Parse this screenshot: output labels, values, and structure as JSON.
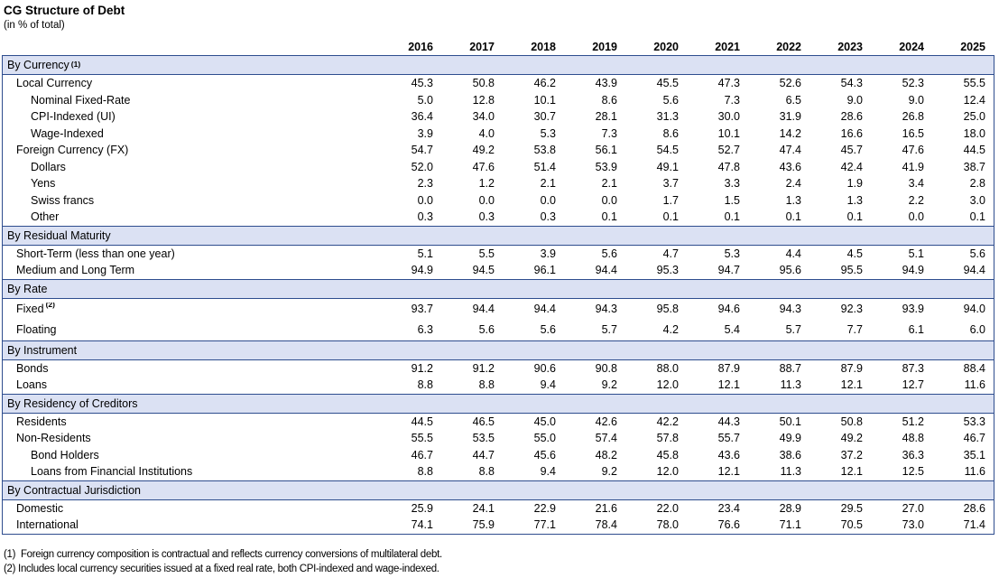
{
  "title": "CG Structure of Debt",
  "subtitle": "(in % of total)",
  "colors": {
    "band_fill": "#dbe1f3",
    "border": "#2e4d8e",
    "text": "#000000"
  },
  "years": [
    "2016",
    "2017",
    "2018",
    "2019",
    "2020",
    "2021",
    "2022",
    "2023",
    "2024",
    "2025"
  ],
  "sections": [
    {
      "header": "By Currency",
      "header_sup": "(1)",
      "rows": [
        {
          "label": "Local Currency",
          "indent": 1,
          "values": [
            "45.3",
            "50.8",
            "46.2",
            "43.9",
            "45.5",
            "47.3",
            "52.6",
            "54.3",
            "52.3",
            "55.5"
          ]
        },
        {
          "label": "Nominal Fixed-Rate",
          "indent": 2,
          "values": [
            "5.0",
            "12.8",
            "10.1",
            "8.6",
            "5.6",
            "7.3",
            "6.5",
            "9.0",
            "9.0",
            "12.4"
          ]
        },
        {
          "label": "CPI-Indexed (UI)",
          "indent": 2,
          "values": [
            "36.4",
            "34.0",
            "30.7",
            "28.1",
            "31.3",
            "30.0",
            "31.9",
            "28.6",
            "26.8",
            "25.0"
          ]
        },
        {
          "label": "Wage-Indexed",
          "indent": 2,
          "values": [
            "3.9",
            "4.0",
            "5.3",
            "7.3",
            "8.6",
            "10.1",
            "14.2",
            "16.6",
            "16.5",
            "18.0"
          ]
        },
        {
          "label": "Foreign Currency (FX)",
          "indent": 1,
          "values": [
            "54.7",
            "49.2",
            "53.8",
            "56.1",
            "54.5",
            "52.7",
            "47.4",
            "45.7",
            "47.6",
            "44.5"
          ]
        },
        {
          "label": "Dollars",
          "indent": 2,
          "values": [
            "52.0",
            "47.6",
            "51.4",
            "53.9",
            "49.1",
            "47.8",
            "43.6",
            "42.4",
            "41.9",
            "38.7"
          ]
        },
        {
          "label": "Yens",
          "indent": 2,
          "values": [
            "2.3",
            "1.2",
            "2.1",
            "2.1",
            "3.7",
            "3.3",
            "2.4",
            "1.9",
            "3.4",
            "2.8"
          ]
        },
        {
          "label": "Swiss francs",
          "indent": 2,
          "values": [
            "0.0",
            "0.0",
            "0.0",
            "0.0",
            "1.7",
            "1.5",
            "1.3",
            "1.3",
            "2.2",
            "3.0"
          ]
        },
        {
          "label": "Other",
          "indent": 2,
          "values": [
            "0.3",
            "0.3",
            "0.3",
            "0.1",
            "0.1",
            "0.1",
            "0.1",
            "0.1",
            "0.0",
            "0.1"
          ]
        }
      ]
    },
    {
      "header": "By Residual Maturity",
      "header_sup": "",
      "rows": [
        {
          "label": "Short-Term (less than one year)",
          "indent": 1,
          "values": [
            "5.1",
            "5.5",
            "3.9",
            "5.6",
            "4.7",
            "5.3",
            "4.4",
            "4.5",
            "5.1",
            "5.6"
          ]
        },
        {
          "label": "Medium and Long Term",
          "indent": 1,
          "values": [
            "94.9",
            "94.5",
            "96.1",
            "94.4",
            "95.3",
            "94.7",
            "95.6",
            "95.5",
            "94.9",
            "94.4"
          ]
        }
      ]
    },
    {
      "header": "By Rate",
      "header_sup": "",
      "rows": [
        {
          "label": "Fixed",
          "label_sup": "(2)",
          "indent": 1,
          "tall": true,
          "values": [
            "93.7",
            "94.4",
            "94.4",
            "94.3",
            "95.8",
            "94.6",
            "94.3",
            "92.3",
            "93.9",
            "94.0"
          ]
        },
        {
          "label": "Floating",
          "indent": 1,
          "tall": true,
          "values": [
            "6.3",
            "5.6",
            "5.6",
            "5.7",
            "4.2",
            "5.4",
            "5.7",
            "7.7",
            "6.1",
            "6.0"
          ]
        }
      ]
    },
    {
      "header": "By Instrument",
      "header_sup": "",
      "rows": [
        {
          "label": "Bonds",
          "indent": 1,
          "values": [
            "91.2",
            "91.2",
            "90.6",
            "90.8",
            "88.0",
            "87.9",
            "88.7",
            "87.9",
            "87.3",
            "88.4"
          ]
        },
        {
          "label": "Loans",
          "indent": 1,
          "values": [
            "8.8",
            "8.8",
            "9.4",
            "9.2",
            "12.0",
            "12.1",
            "11.3",
            "12.1",
            "12.7",
            "11.6"
          ]
        }
      ]
    },
    {
      "header": "By Residency of Creditors",
      "header_sup": "",
      "rows": [
        {
          "label": "Residents",
          "indent": 1,
          "values": [
            "44.5",
            "46.5",
            "45.0",
            "42.6",
            "42.2",
            "44.3",
            "50.1",
            "50.8",
            "51.2",
            "53.3"
          ]
        },
        {
          "label": "Non-Residents",
          "indent": 1,
          "values": [
            "55.5",
            "53.5",
            "55.0",
            "57.4",
            "57.8",
            "55.7",
            "49.9",
            "49.2",
            "48.8",
            "46.7"
          ]
        },
        {
          "label": "Bond Holders",
          "indent": 2,
          "values": [
            "46.7",
            "44.7",
            "45.6",
            "48.2",
            "45.8",
            "43.6",
            "38.6",
            "37.2",
            "36.3",
            "35.1"
          ]
        },
        {
          "label": "Loans from Financial Institutions",
          "indent": 2,
          "values": [
            "8.8",
            "8.8",
            "9.4",
            "9.2",
            "12.0",
            "12.1",
            "11.3",
            "12.1",
            "12.5",
            "11.6"
          ]
        }
      ]
    },
    {
      "header": "By Contractual Jurisdiction",
      "header_sup": "",
      "rows": [
        {
          "label": "Domestic",
          "indent": 1,
          "values": [
            "25.9",
            "24.1",
            "22.9",
            "21.6",
            "22.0",
            "23.4",
            "28.9",
            "29.5",
            "27.0",
            "28.6"
          ]
        },
        {
          "label": "International",
          "indent": 1,
          "values": [
            "74.1",
            "75.9",
            "77.1",
            "78.4",
            "78.0",
            "76.6",
            "71.1",
            "70.5",
            "73.0",
            "71.4"
          ]
        }
      ]
    }
  ],
  "footnotes": [
    "(1)  Foreign currency composition is contractual and reflects currency conversions of multilateral debt.",
    "(2) Includes local currency securities issued at a fixed real rate, both CPI-indexed and wage-indexed."
  ]
}
